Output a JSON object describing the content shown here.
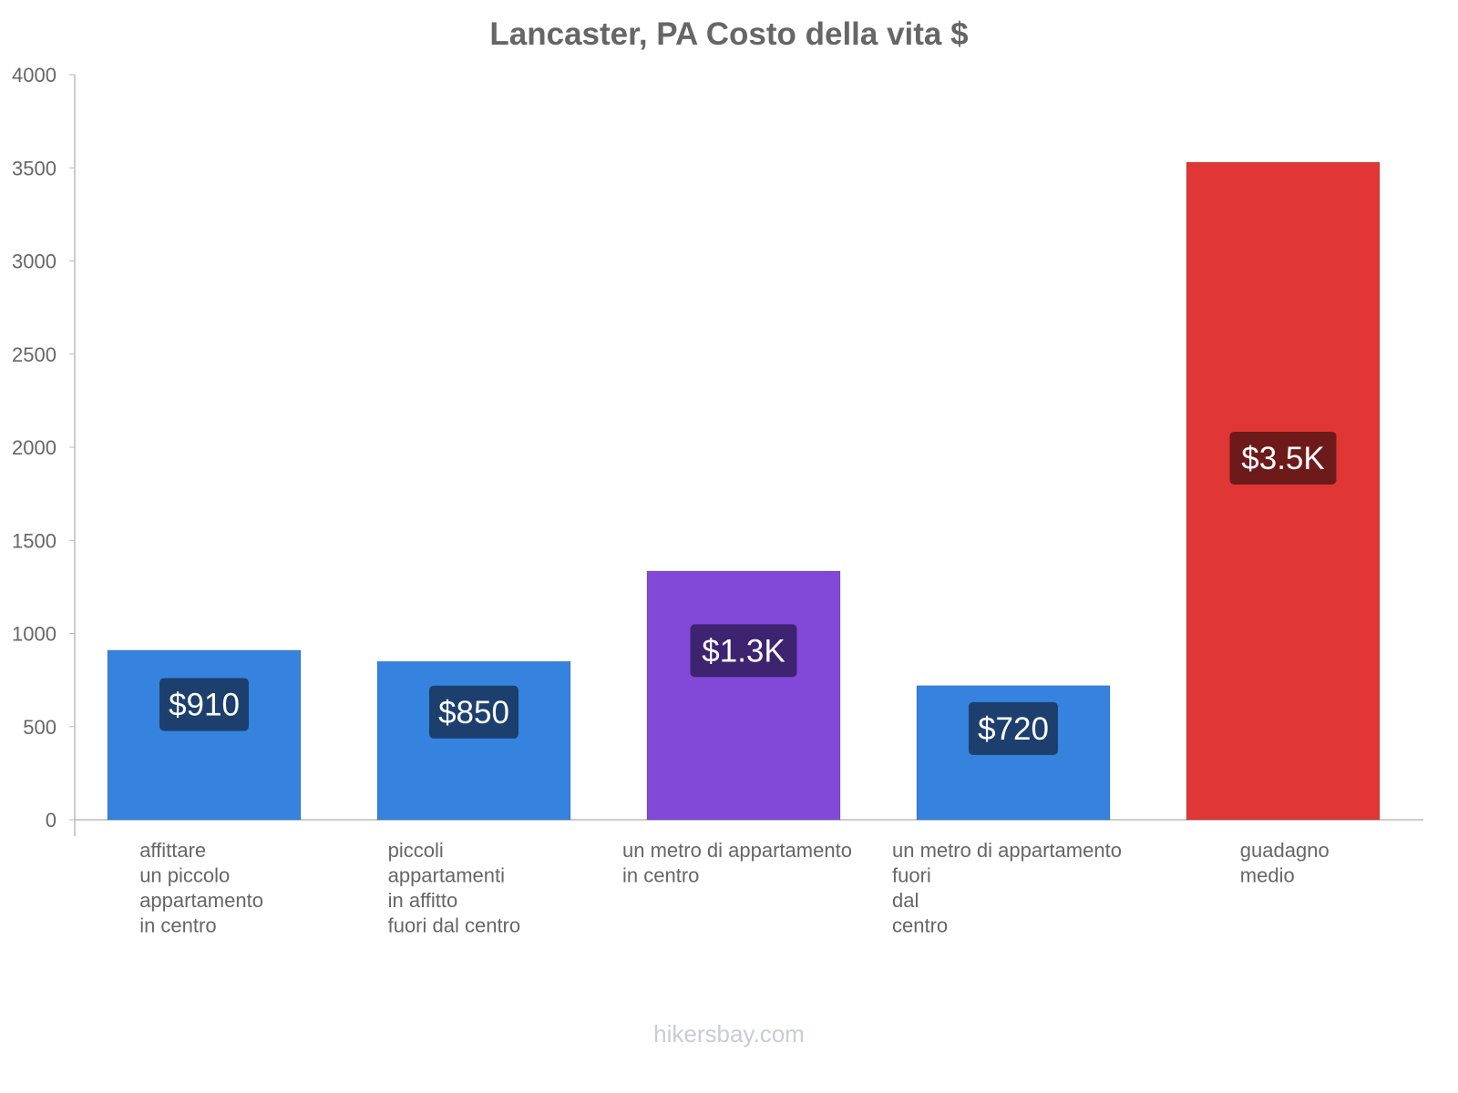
{
  "chart_data": {
    "type": "bar",
    "title": "Lancaster, PA Costo della vita $",
    "xlabel": "",
    "ylabel": "",
    "ylim": [
      0,
      4000
    ],
    "yticks": [
      0,
      500,
      1000,
      1500,
      2000,
      2500,
      3000,
      3500,
      4000
    ],
    "grid": false,
    "categories": [
      [
        "affittare",
        "un piccolo",
        "appartamento",
        "in centro"
      ],
      [
        "piccoli",
        "appartamenti",
        "in affitto",
        "fuori dal centro"
      ],
      [
        "un metro di appartamento",
        "in centro"
      ],
      [
        "un metro di appartamento",
        "fuori",
        "dal",
        "centro"
      ],
      [
        "guadagno",
        "medio"
      ]
    ],
    "values": [
      910,
      850,
      1335,
      720,
      3530
    ],
    "value_labels": [
      "$910",
      "$850",
      "$1.3K",
      "$720",
      "$3.5K"
    ],
    "bar_colors": [
      "#3583de",
      "#3583de",
      "#8249d9",
      "#3583de",
      "#e13636"
    ],
    "label_colors": [
      "#1c3f6e",
      "#1c3f6e",
      "#3e2370",
      "#1c3f6e",
      "#6e1a1a"
    ]
  },
  "footer": "hikersbay.com"
}
